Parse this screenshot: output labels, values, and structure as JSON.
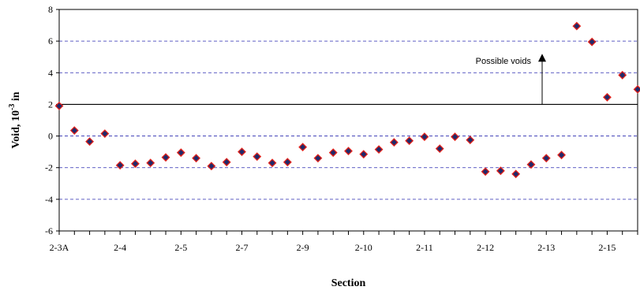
{
  "chart_data": {
    "type": "scatter",
    "xlabel": "Section",
    "ylabel_base": "Void, 10",
    "ylabel_exp": "-3",
    "ylabel_unit": " in",
    "ylim": [
      -6,
      8
    ],
    "yticks": [
      -6,
      -4,
      -2,
      0,
      2,
      4,
      6,
      8
    ],
    "grid": "dashed horizontal at major y ticks",
    "threshold": {
      "value": 2,
      "annotation": "Possible voids"
    },
    "x_tick_labels": [
      "2-3A",
      "2-4",
      "2-5",
      "2-7",
      "2-9",
      "2-10",
      "2-11",
      "2-12",
      "2-13",
      "2-15"
    ],
    "x_tick_label_positions": [
      0,
      4,
      8,
      12,
      16,
      20,
      24,
      28,
      32,
      36
    ],
    "marker_fill": "#1f2a6b",
    "marker_edge": "#e0201a",
    "series": [
      {
        "points": [
          [
            0,
            1.9
          ],
          [
            1,
            0.35
          ],
          [
            2,
            -0.35
          ],
          [
            3,
            0.15
          ],
          [
            4,
            -1.85
          ],
          [
            5,
            -1.75
          ],
          [
            6,
            -1.7
          ],
          [
            7,
            -1.35
          ],
          [
            8,
            -1.05
          ],
          [
            9,
            -1.4
          ],
          [
            10,
            -1.9
          ],
          [
            11,
            -1.65
          ],
          [
            12,
            -1.0
          ],
          [
            13,
            -1.3
          ],
          [
            14,
            -1.7
          ],
          [
            15,
            -1.65
          ],
          [
            16,
            -0.7
          ],
          [
            17,
            -1.4
          ],
          [
            18,
            -1.05
          ],
          [
            19,
            -0.95
          ],
          [
            20,
            -1.15
          ],
          [
            21,
            -0.85
          ],
          [
            22,
            -0.4
          ],
          [
            23,
            -0.3
          ],
          [
            24,
            -0.05
          ],
          [
            25,
            -0.8
          ],
          [
            26,
            -0.05
          ],
          [
            27,
            -0.25
          ],
          [
            28,
            -2.25
          ],
          [
            29,
            -2.2
          ],
          [
            30,
            -2.4
          ],
          [
            31,
            -1.8
          ],
          [
            32,
            -1.4
          ],
          [
            33,
            -1.2
          ],
          [
            34,
            6.95
          ],
          [
            35,
            5.95
          ],
          [
            36,
            2.45
          ],
          [
            37,
            3.85
          ],
          [
            38,
            2.95
          ]
        ]
      }
    ]
  }
}
